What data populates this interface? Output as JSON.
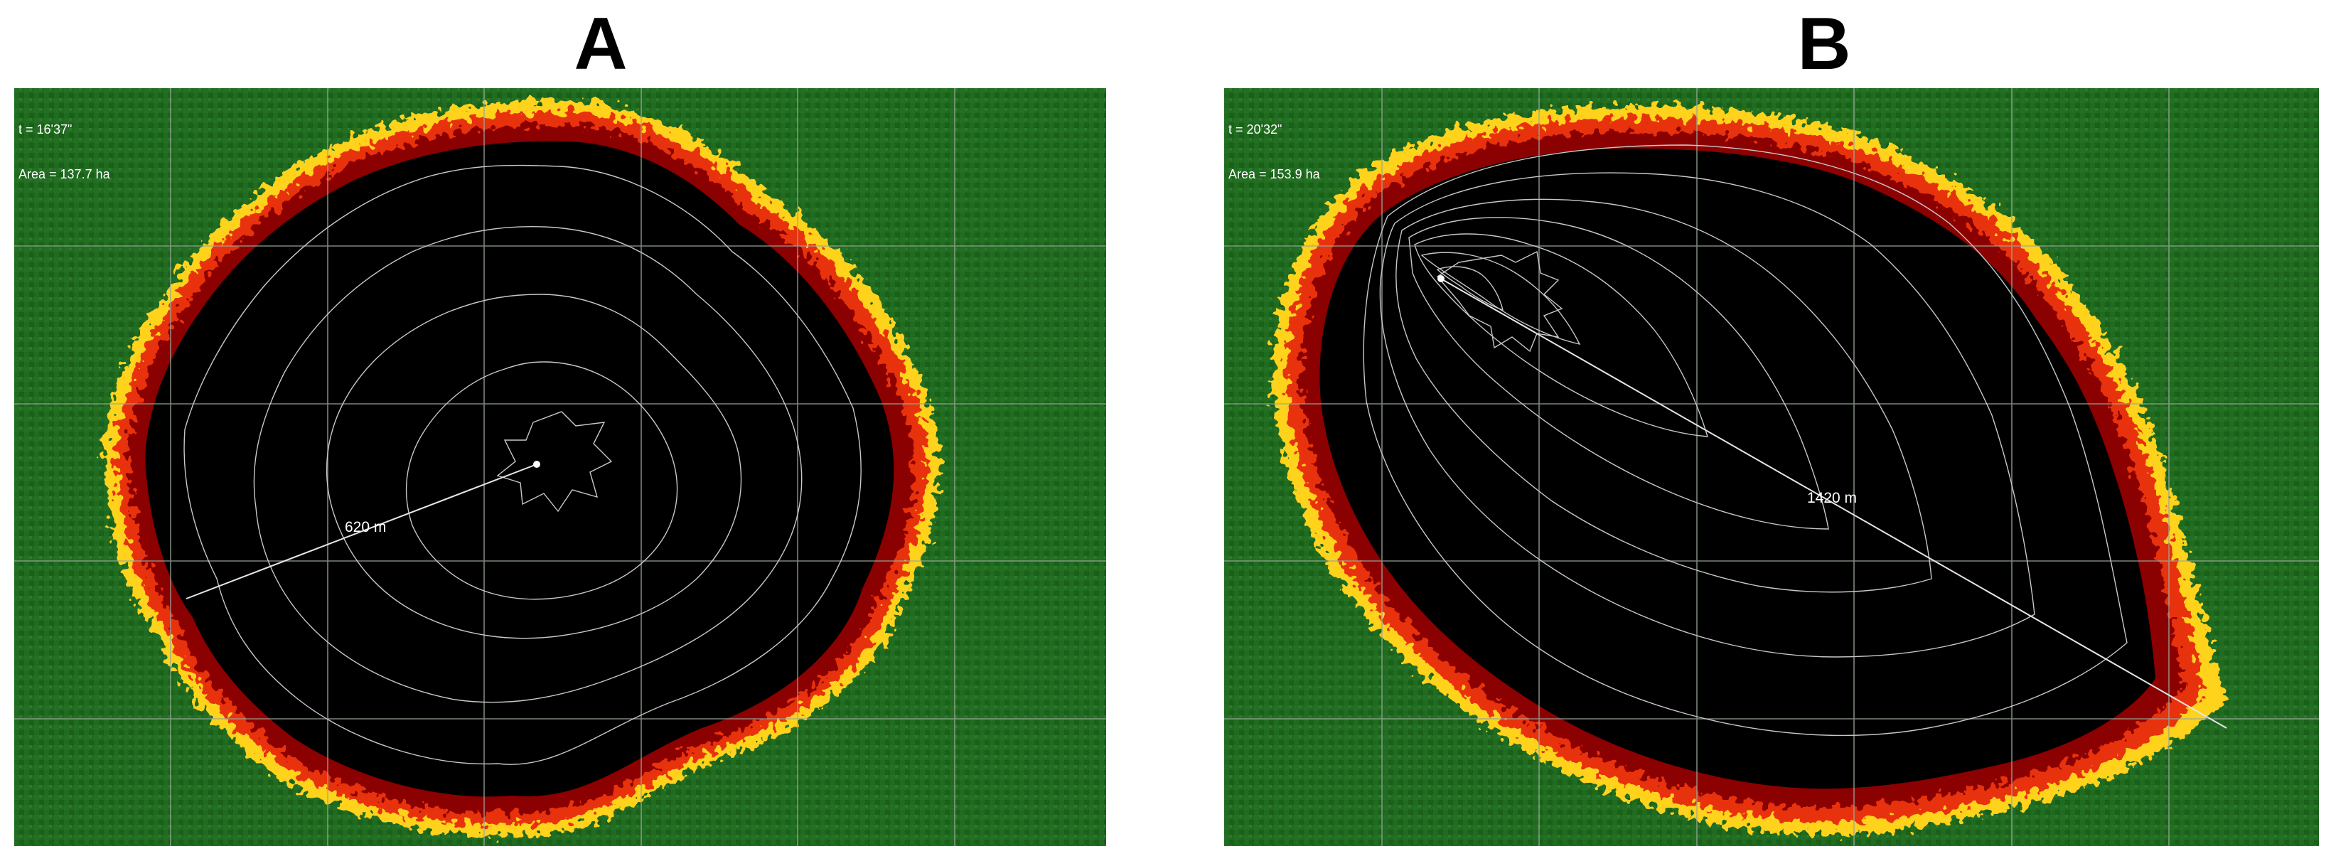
{
  "panels": [
    {
      "letter": "A",
      "time_label": "t = 16'37\"",
      "area_label": "Area = 137.7 ha",
      "distance_label": "620 m"
    },
    {
      "letter": "B",
      "time_label": "t = 20'32\"",
      "area_label": "Area = 153.9 ha",
      "distance_label": "1420 m"
    }
  ],
  "colors": {
    "vegetation": "#1f6b1f",
    "burnt": "#000000",
    "front_inner": "#8b0000",
    "front_mid": "#e8300a",
    "front_outer": "#ffd21e",
    "grid": "#9aa89a",
    "isochrone": "#c8c8c8"
  }
}
